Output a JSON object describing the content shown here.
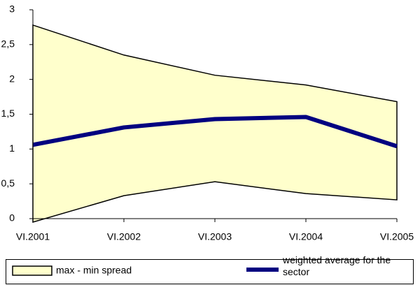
{
  "chart_data": {
    "type": "line",
    "categories": [
      "VI.2001",
      "VI.2002",
      "VI.2003",
      "VI.2004",
      "VI.2005"
    ],
    "series": [
      {
        "name": "max - min spread",
        "kind": "band",
        "color": "#ffffcc",
        "upper": [
          2.78,
          2.35,
          2.06,
          1.92,
          1.68
        ],
        "lower": [
          -0.05,
          0.33,
          0.53,
          0.36,
          0.27
        ]
      },
      {
        "name": "weighted average for the sector",
        "kind": "line",
        "color": "#000080",
        "values": [
          1.06,
          1.31,
          1.43,
          1.46,
          1.04
        ]
      }
    ],
    "ylim": [
      0,
      3
    ],
    "yticks": [
      0,
      {
        "value": 0.5,
        "label": "0,5"
      },
      1,
      {
        "value": 1.5,
        "label": "1,5"
      },
      2,
      {
        "value": 2.5,
        "label": "2,5"
      },
      3
    ],
    "grid": false,
    "legend": "bottom"
  }
}
